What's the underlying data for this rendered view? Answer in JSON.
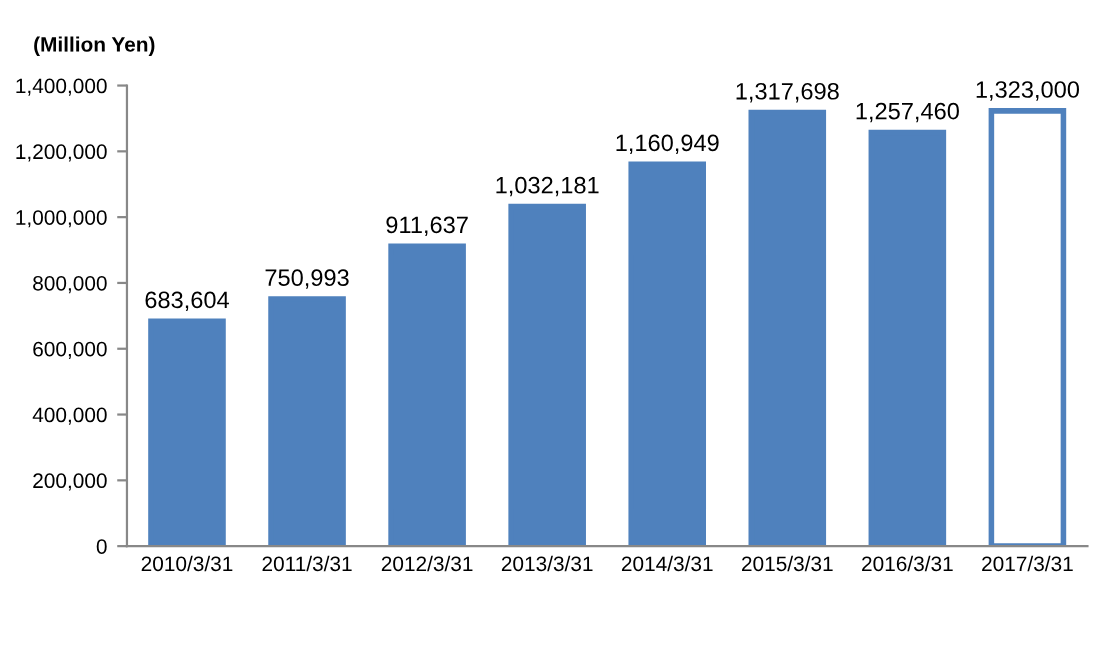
{
  "chart_data": {
    "type": "bar",
    "ylabel": "(Million Yen)",
    "categories": [
      "2010/3/31",
      "2011/3/31",
      "2012/3/31",
      "2013/3/31",
      "2014/3/31",
      "2015/3/31",
      "2016/3/31",
      "2017/3/31"
    ],
    "values": [
      683604,
      750993,
      911637,
      1032181,
      1160949,
      1317698,
      1257460,
      1323000
    ],
    "colors": [
      "#4f81bd",
      "#4f81bd",
      "#4f81bd",
      "#4f81bd",
      "#4f81bd",
      "#4f81bd",
      "#4f81bd",
      "#ffffff"
    ],
    "value_labels": [
      "683,604",
      "750,993",
      "911,637",
      "1,032,181",
      "1,160,949",
      "1,317,698",
      "1,257,460",
      "1,323,000"
    ],
    "ylim": [
      0,
      1400000
    ],
    "yticks": [
      {
        "value": 0,
        "label": "0"
      },
      {
        "value": 200000,
        "label": "200,000"
      },
      {
        "value": 400000,
        "label": "400,000"
      },
      {
        "value": 600000,
        "label": "600,000"
      },
      {
        "value": 800000,
        "label": "800,000"
      },
      {
        "value": 1000000,
        "label": "1,000,000"
      },
      {
        "value": 1200000,
        "label": "1,200,000"
      },
      {
        "value": 1400000,
        "label": "1,400,000"
      }
    ],
    "grid": false,
    "legend": false
  }
}
